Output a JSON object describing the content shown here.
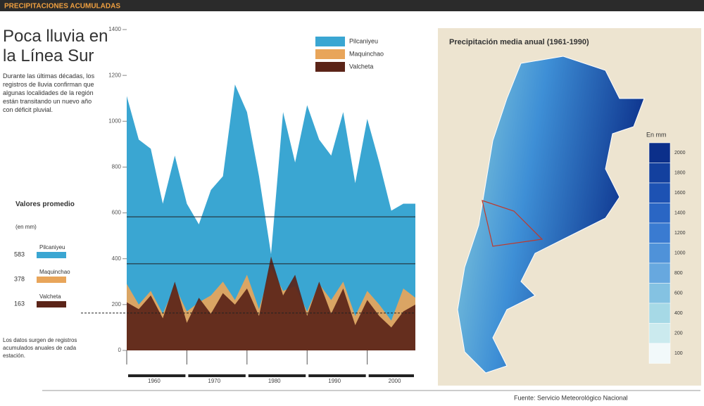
{
  "header": "PRECIPITACIONES ACUMULADAS",
  "title": "Poca lluvia en la Línea Sur",
  "intro": "Durante las últimas décadas, los registros de lluvia confirman que algunas localidades de la región están transitando un nuevo año con déficit pluvial.",
  "averages_title": "Valores promedio",
  "averages_unit": "(en mm)",
  "note": "Los datos surgen de registros acumulados anuales de cada estación.",
  "source": "Fuente: Servicio Meteorológico Nacional",
  "chart_data": {
    "type": "area",
    "x": [
      1960,
      1962,
      1964,
      1966,
      1968,
      1970,
      1972,
      1974,
      1976,
      1978,
      1980,
      1982,
      1984,
      1986,
      1988,
      1990,
      1992,
      1994,
      1996,
      1998,
      2000,
      2002,
      2004,
      2006,
      2008
    ],
    "series": [
      {
        "name": "Pilcaniyeu",
        "color": "#3aa6d2",
        "average": 583,
        "values": [
          1110,
          920,
          880,
          640,
          850,
          640,
          550,
          700,
          760,
          1160,
          1040,
          760,
          420,
          1040,
          820,
          1070,
          920,
          850,
          1040,
          730,
          1010,
          820,
          610,
          640,
          640
        ]
      },
      {
        "name": "Maquinchao",
        "color": "#e8a55a",
        "average": 378,
        "values": [
          290,
          200,
          260,
          160,
          280,
          170,
          210,
          240,
          300,
          220,
          330,
          180,
          360,
          260,
          280,
          170,
          290,
          220,
          300,
          150,
          260,
          200,
          130,
          270,
          230
        ]
      },
      {
        "name": "Valcheta",
        "color": "#5b2418",
        "average": 163,
        "values": [
          210,
          180,
          240,
          140,
          300,
          120,
          230,
          160,
          250,
          200,
          270,
          150,
          410,
          240,
          330,
          150,
          300,
          160,
          270,
          110,
          220,
          150,
          100,
          170,
          200
        ]
      }
    ],
    "xticks": [
      1960,
      1970,
      1980,
      1990,
      2000
    ],
    "ylim": [
      0,
      1400
    ],
    "yticks": [
      0,
      200,
      400,
      600,
      800,
      1000,
      1200,
      1400
    ]
  },
  "map": {
    "title": "Precipitación media anual (1961-1990)",
    "unit": "En mm",
    "scale_labels": [
      "2000",
      "1800",
      "1600",
      "1400",
      "1200",
      "1000",
      "800",
      "600",
      "400",
      "200",
      "100"
    ]
  }
}
